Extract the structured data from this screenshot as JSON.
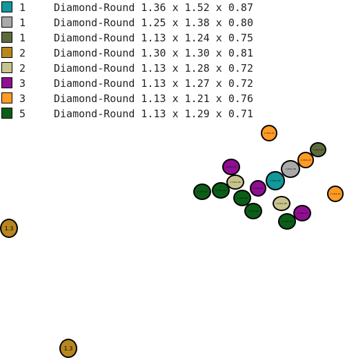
{
  "legend": [
    {
      "color": "#12979b",
      "count": "1",
      "description": "Diamond-Round 1.36 x 1.52 x 0.87"
    },
    {
      "color": "#a9a9a9",
      "count": "1",
      "description": "Diamond-Round 1.25 x 1.38 x 0.80"
    },
    {
      "color": "#5b6b3b",
      "count": "1",
      "description": "Diamond-Round 1.13 x 1.24 x 0.75"
    },
    {
      "color": "#b8861e",
      "count": "2",
      "description": "Diamond-Round 1.30 x 1.30 x 0.81"
    },
    {
      "color": "#c8c48e",
      "count": "2",
      "description": "Diamond-Round 1.13 x 1.28 x 0.72"
    },
    {
      "color": "#8e0f91",
      "count": "3",
      "description": "Diamond-Round 1.13 x 1.27 x 0.72"
    },
    {
      "color": "#ff9a24",
      "count": "3",
      "description": "Diamond-Round 1.13 x 1.21 x 0.76"
    },
    {
      "color": "#0b5e17",
      "count": "5",
      "description": "Diamond-Round 1.13 x 1.29 x 0.71"
    }
  ],
  "stones": [
    {
      "group": 6,
      "label": "1.13x1.21"
    },
    {
      "group": 2,
      "label": "1.13x1.24"
    },
    {
      "group": 6,
      "label": "1.13x1.21"
    },
    {
      "group": 5,
      "label": "1.13x1.27"
    },
    {
      "group": 1,
      "label": "1.25x1.38"
    },
    {
      "group": 4,
      "label": "1.13x1.28"
    },
    {
      "group": 0,
      "label": "1.36x1.52"
    },
    {
      "group": 5,
      "label": "1.13x1.27"
    },
    {
      "group": 7,
      "label": "1.13x1.29"
    },
    {
      "group": 7,
      "label": "1.13x1.29"
    },
    {
      "group": 7,
      "label": "1.13x1.29"
    },
    {
      "group": 6,
      "label": "1.13x1.21"
    },
    {
      "group": 4,
      "label": "1.13x1.28"
    },
    {
      "group": 7,
      "label": "1.13x1.29"
    },
    {
      "group": 5,
      "label": "1.13x1.27"
    },
    {
      "group": 7,
      "label": "1.13x1.29"
    },
    {
      "group": 3,
      "label": "1.3"
    },
    {
      "group": 3,
      "label": "1.3"
    }
  ]
}
